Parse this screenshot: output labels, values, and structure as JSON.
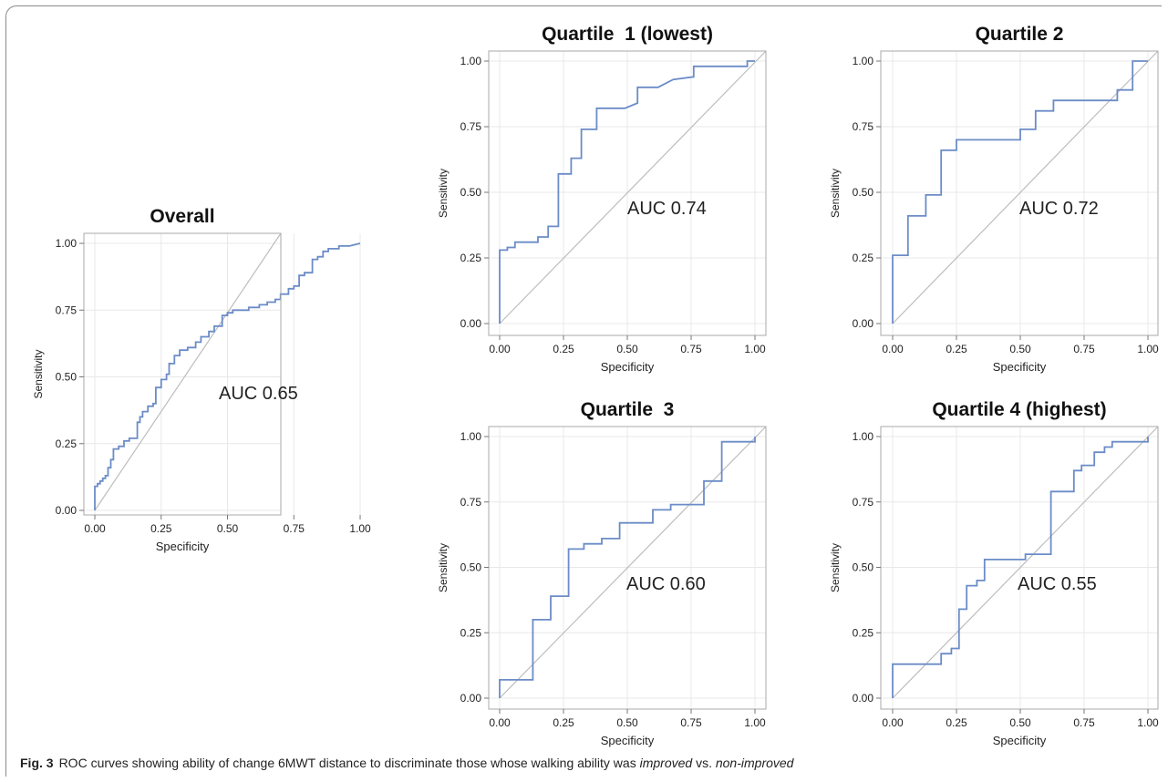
{
  "caption": {
    "label": "Fig. 3",
    "text_1": "ROC curves showing ability of change 6MWT distance to discriminate those whose walking ability was ",
    "em_1": "improved",
    "text_2": " vs. ",
    "em_2": "non-improved"
  },
  "colors": {
    "curve": "#6b8cc7",
    "diagonal": "#bdbdbd",
    "grid": "#e8e8e8",
    "frame": "#aaaaaa",
    "text": "#222222"
  },
  "chart_data": [
    {
      "type": "line",
      "title": "Overall",
      "xlabel": "Specificity",
      "ylabel": "Sensitivity",
      "xlim": [
        0,
        1
      ],
      "ylim": [
        0,
        1
      ],
      "ticks": [
        "0.00",
        "0.25",
        "0.50",
        "0.75",
        "1.00"
      ],
      "grid": true,
      "annotation": "AUC 0.65",
      "series": [
        {
          "x": [
            0,
            0,
            0.01,
            0.01,
            0.02,
            0.02,
            0.03,
            0.03,
            0.04,
            0.04,
            0.05,
            0.05,
            0.06,
            0.06,
            0.07,
            0.07,
            0.09,
            0.09,
            0.11,
            0.11,
            0.13,
            0.13,
            0.16,
            0.16,
            0.17,
            0.17,
            0.18,
            0.18,
            0.2,
            0.2,
            0.22,
            0.22,
            0.23,
            0.23,
            0.25,
            0.25,
            0.27,
            0.27,
            0.28,
            0.28,
            0.3,
            0.3,
            0.32,
            0.32,
            0.35,
            0.35,
            0.38,
            0.38,
            0.4,
            0.4,
            0.43,
            0.43,
            0.45,
            0.45,
            0.48,
            0.48,
            0.5,
            0.5,
            0.52,
            0.52,
            0.55,
            0.55,
            0.58,
            0.58,
            0.62,
            0.62,
            0.65,
            0.65,
            0.68,
            0.68,
            0.7,
            0.7,
            0.73,
            0.73,
            0.75,
            0.75,
            0.77,
            0.77,
            0.79,
            0.79,
            0.82,
            0.82,
            0.84,
            0.84,
            0.86,
            0.86,
            0.88,
            0.88,
            0.92,
            0.92,
            0.96,
            0.96,
            1.0
          ],
          "y": [
            0,
            0.09,
            0.09,
            0.1,
            0.1,
            0.11,
            0.11,
            0.12,
            0.12,
            0.13,
            0.13,
            0.16,
            0.16,
            0.19,
            0.19,
            0.23,
            0.23,
            0.24,
            0.24,
            0.26,
            0.26,
            0.27,
            0.27,
            0.33,
            0.33,
            0.35,
            0.35,
            0.37,
            0.37,
            0.39,
            0.39,
            0.4,
            0.4,
            0.46,
            0.46,
            0.49,
            0.49,
            0.51,
            0.51,
            0.55,
            0.55,
            0.58,
            0.58,
            0.6,
            0.6,
            0.61,
            0.61,
            0.63,
            0.63,
            0.65,
            0.65,
            0.67,
            0.67,
            0.69,
            0.69,
            0.73,
            0.73,
            0.74,
            0.74,
            0.75,
            0.75,
            0.75,
            0.75,
            0.76,
            0.76,
            0.77,
            0.77,
            0.78,
            0.78,
            0.79,
            0.79,
            0.81,
            0.81,
            0.83,
            0.83,
            0.84,
            0.84,
            0.88,
            0.88,
            0.89,
            0.89,
            0.94,
            0.94,
            0.95,
            0.95,
            0.97,
            0.97,
            0.98,
            0.98,
            0.99,
            0.99,
            0.99,
            1.0
          ]
        }
      ]
    },
    {
      "type": "line",
      "title": "Quartile  1 (lowest)",
      "xlabel": "Specificity",
      "ylabel": "Sensitivity",
      "xlim": [
        0,
        1
      ],
      "ylim": [
        0,
        1
      ],
      "ticks": [
        "0.00",
        "0.25",
        "0.50",
        "0.75",
        "1.00"
      ],
      "grid": true,
      "annotation": "AUC 0.74",
      "series": [
        {
          "x": [
            0,
            0,
            0.03,
            0.03,
            0.06,
            0.06,
            0.09,
            0.09,
            0.15,
            0.15,
            0.19,
            0.19,
            0.23,
            0.23,
            0.28,
            0.28,
            0.32,
            0.32,
            0.38,
            0.38,
            0.49,
            0.54,
            0.54,
            0.62,
            0.68,
            0.76,
            0.76,
            0.97,
            0.97,
            1.0
          ],
          "y": [
            0,
            0.28,
            0.28,
            0.29,
            0.29,
            0.31,
            0.31,
            0.31,
            0.31,
            0.33,
            0.33,
            0.37,
            0.37,
            0.57,
            0.57,
            0.63,
            0.63,
            0.74,
            0.74,
            0.82,
            0.82,
            0.84,
            0.9,
            0.9,
            0.93,
            0.94,
            0.98,
            0.98,
            1.0,
            1.0
          ]
        }
      ]
    },
    {
      "type": "line",
      "title": "Quartile 2",
      "xlabel": "Specificity",
      "ylabel": "Sensitivity",
      "xlim": [
        0,
        1
      ],
      "ylim": [
        0,
        1
      ],
      "ticks": [
        "0.00",
        "0.25",
        "0.50",
        "0.75",
        "1.00"
      ],
      "grid": true,
      "annotation": "AUC 0.72",
      "series": [
        {
          "x": [
            0,
            0,
            0.06,
            0.06,
            0.13,
            0.13,
            0.19,
            0.19,
            0.25,
            0.25,
            0.5,
            0.5,
            0.56,
            0.56,
            0.63,
            0.63,
            0.88,
            0.88,
            0.94,
            0.94,
            1.0
          ],
          "y": [
            0,
            0.26,
            0.26,
            0.41,
            0.41,
            0.49,
            0.49,
            0.66,
            0.66,
            0.7,
            0.7,
            0.74,
            0.74,
            0.81,
            0.81,
            0.85,
            0.85,
            0.89,
            0.89,
            1.0,
            1.0
          ]
        }
      ]
    },
    {
      "type": "line",
      "title": "Quartile  3",
      "xlabel": "Specificity",
      "ylabel": "Sensitivity",
      "xlim": [
        0,
        1
      ],
      "ylim": [
        0,
        1
      ],
      "ticks": [
        "0.00",
        "0.25",
        "0.50",
        "0.75",
        "1.00"
      ],
      "grid": true,
      "annotation": "AUC 0.60",
      "series": [
        {
          "x": [
            0,
            0,
            0.13,
            0.13,
            0.2,
            0.2,
            0.27,
            0.27,
            0.33,
            0.33,
            0.4,
            0.4,
            0.47,
            0.47,
            0.6,
            0.6,
            0.67,
            0.67,
            0.8,
            0.8,
            0.87,
            0.87,
            1.0,
            1.0
          ],
          "y": [
            0,
            0.07,
            0.07,
            0.3,
            0.3,
            0.39,
            0.39,
            0.57,
            0.57,
            0.59,
            0.59,
            0.61,
            0.61,
            0.67,
            0.67,
            0.72,
            0.72,
            0.74,
            0.74,
            0.83,
            0.83,
            0.98,
            0.98,
            1.0
          ]
        }
      ]
    },
    {
      "type": "line",
      "title": "Quartile 4 (highest)",
      "xlabel": "Specificity",
      "ylabel": "Sensitivity",
      "xlim": [
        0,
        1
      ],
      "ylim": [
        0,
        1
      ],
      "ticks": [
        "0.00",
        "0.25",
        "0.50",
        "0.75",
        "1.00"
      ],
      "grid": true,
      "annotation": "AUC 0.55",
      "series": [
        {
          "x": [
            0,
            0,
            0.19,
            0.19,
            0.23,
            0.23,
            0.26,
            0.26,
            0.29,
            0.29,
            0.33,
            0.33,
            0.36,
            0.36,
            0.38,
            0.38,
            0.52,
            0.52,
            0.62,
            0.62,
            0.71,
            0.71,
            0.74,
            0.74,
            0.79,
            0.79,
            0.83,
            0.83,
            0.86,
            0.86,
            1.0,
            1.0
          ],
          "y": [
            0,
            0.13,
            0.13,
            0.17,
            0.17,
            0.19,
            0.19,
            0.34,
            0.34,
            0.43,
            0.43,
            0.45,
            0.45,
            0.53,
            0.53,
            0.53,
            0.53,
            0.55,
            0.55,
            0.79,
            0.79,
            0.87,
            0.87,
            0.89,
            0.89,
            0.94,
            0.94,
            0.96,
            0.96,
            0.98,
            0.98,
            1.0
          ]
        }
      ]
    }
  ]
}
